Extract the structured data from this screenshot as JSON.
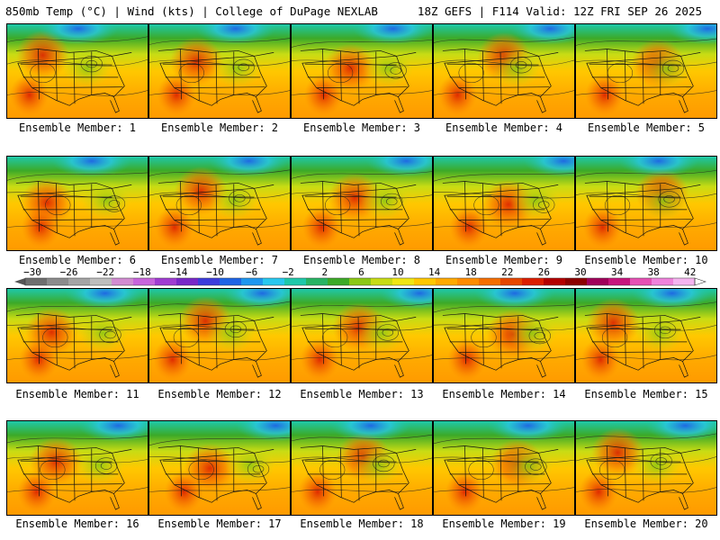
{
  "header": {
    "left": "850mb Temp (°C) | Wind (kts) | College of DuPage NEXLAB",
    "right": "18Z GEFS | F114 Valid: 12Z FRI SEP 26 2025"
  },
  "panels": [
    {
      "label": "Ensemble Member: 1"
    },
    {
      "label": "Ensemble Member: 2"
    },
    {
      "label": "Ensemble Member: 3"
    },
    {
      "label": "Ensemble Member: 4"
    },
    {
      "label": "Ensemble Member: 5"
    },
    {
      "label": "Ensemble Member: 6"
    },
    {
      "label": "Ensemble Member: 7"
    },
    {
      "label": "Ensemble Member: 8"
    },
    {
      "label": "Ensemble Member: 9"
    },
    {
      "label": "Ensemble Member: 10"
    },
    {
      "label": "Ensemble Member: 11"
    },
    {
      "label": "Ensemble Member: 12"
    },
    {
      "label": "Ensemble Member: 13"
    },
    {
      "label": "Ensemble Member: 14"
    },
    {
      "label": "Ensemble Member: 15"
    },
    {
      "label": "Ensemble Member: 16"
    },
    {
      "label": "Ensemble Member: 17"
    },
    {
      "label": "Ensemble Member: 18"
    },
    {
      "label": "Ensemble Member: 19"
    },
    {
      "label": "Ensemble Member: 20"
    }
  ],
  "colorbar": {
    "ticks": [
      "−30",
      "−26",
      "−22",
      "−18",
      "−14",
      "−10",
      "−6",
      "−2",
      "2",
      "6",
      "10",
      "14",
      "18",
      "22",
      "26",
      "30",
      "34",
      "38",
      "42"
    ],
    "colors": [
      "#6e6e6e",
      "#8c8c8c",
      "#a5a5a5",
      "#bebebe",
      "#d28cd2",
      "#c864dc",
      "#a03cd2",
      "#7828c8",
      "#3c3cdc",
      "#1e64e6",
      "#1e96f0",
      "#28c8f0",
      "#1ec8aa",
      "#28b464",
      "#3caa28",
      "#8cc814",
      "#c8dc14",
      "#f0e614",
      "#ffc800",
      "#ffaa00",
      "#ff8c00",
      "#f56e00",
      "#e64600",
      "#dc1e00",
      "#b40000",
      "#8c0000",
      "#a0005a",
      "#c8147d",
      "#e650b4",
      "#f082dc",
      "#f5b4f0"
    ]
  }
}
